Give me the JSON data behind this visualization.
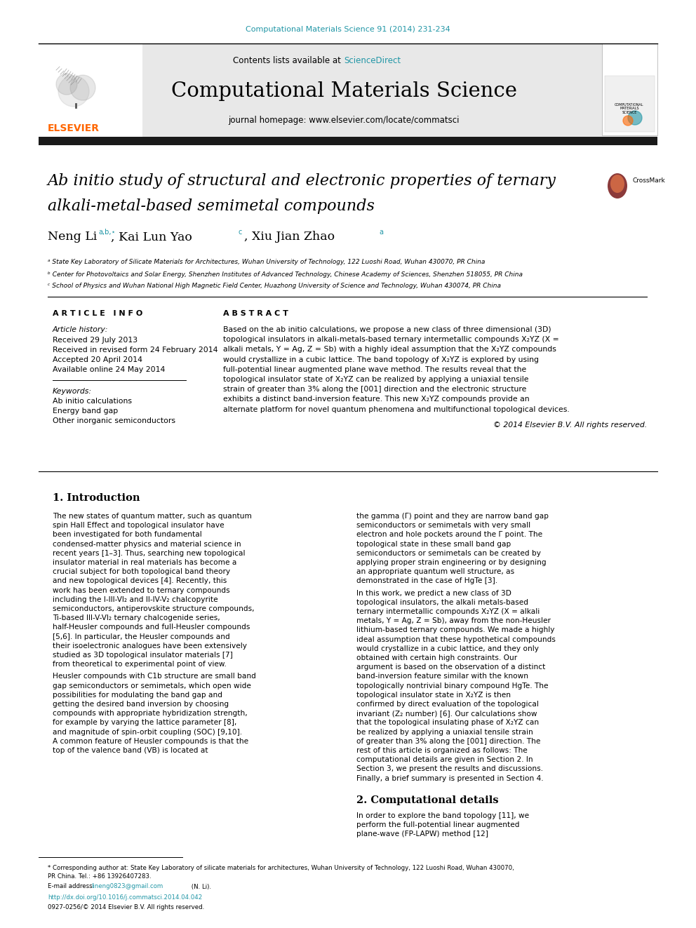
{
  "page_bg": "#ffffff",
  "journal_ref": "Computational Materials Science 91 (2014) 231-234",
  "journal_ref_color": "#2196A6",
  "header_bg": "#e8e8e8",
  "contents_text": "Contents lists available at ",
  "sciencedirect_text": "ScienceDirect",
  "sciencedirect_color": "#2196A6",
  "journal_title": "Computational Materials Science",
  "journal_homepage": "journal homepage: www.elsevier.com/locate/commatsci",
  "thick_bar_color": "#1a1a1a",
  "paper_title_line1": "Ab initio study of structural and electronic properties of ternary",
  "paper_title_line2": "alkali-metal-based semimetal compounds",
  "affil_a": "ᵃ State Key Laboratory of Silicate Materials for Architectures, Wuhan University of Technology, 122 Luoshi Road, Wuhan 430070, PR China",
  "affil_b": "ᵇ Center for Photovoltaics and Solar Energy, Shenzhen Institutes of Advanced Technology, Chinese Academy of Sciences, Shenzhen 518055, PR China",
  "affil_c": "ᶜ School of Physics and Wuhan National High Magnetic Field Center, Huazhong University of Science and Technology, Wuhan 430074, PR China",
  "article_info_header": "A R T I C L E   I N F O",
  "abstract_header": "A B S T R A C T",
  "article_history_label": "Article history:",
  "received": "Received 29 July 2013",
  "revised": "Received in revised form 24 February 2014",
  "accepted": "Accepted 20 April 2014",
  "available": "Available online 24 May 2014",
  "keywords_label": "Keywords:",
  "kw1": "Ab initio calculations",
  "kw2": "Energy band gap",
  "kw3": "Other inorganic semiconductors",
  "abstract_text": "Based on the ab initio calculations, we propose a new class of three dimensional (3D) topological insulators in alkali-metals-based ternary intermetallic compounds X₂YZ (X = alkali metals, Y = Ag, Z = Sb) with a highly ideal assumption that the X₂YZ compounds would crystallize in a cubic lattice. The band topology of X₂YZ is explored by using full-potential linear augmented plane wave method. The results reveal that the topological insulator state of X₂YZ can be realized by applying a uniaxial tensile strain of greater than 3% along the [001] direction and the electronic structure exhibits a distinct band-inversion feature. This new X₂YZ compounds provide an alternate platform for novel quantum phenomena and multifunctional topological devices.",
  "copyright": "© 2014 Elsevier B.V. All rights reserved.",
  "section1_title": "1. Introduction",
  "intro_col1": "    The new states of quantum matter, such as quantum spin Hall Effect and topological insulator have been investigated for both fundamental condensed-matter physics and material science in recent years [1–3]. Thus, searching new topological insulator material in real materials has become a crucial subject for both topological band theory and new topological devices [4]. Recently, this work has been extended to ternary compounds including the I-III-VI₂ and II-IV-V₂ chalcopyrite semiconductors, antiperovskite structure compounds, Ti-based III-V-VI₂ ternary chalcogenide series, half-Heusler compounds and full-Heusler compounds [5,6]. In particular, the Heusler compounds and their isoelectronic analogues have been extensively studied as 3D topological insulator materials [7] from theoretical to experimental point of view.",
  "intro_col1b": "    Heusler compounds with C1b structure are small band gap semiconductors or semimetals, which open wide possibilities for modulating the band gap and getting the desired band inversion by choosing compounds with appropriate hybridization strength, for example by varying the lattice parameter [8], and magnitude of spin-orbit coupling (SOC) [9,10]. A common feature of Heusler compounds is that the top of the valence band (VB) is located at",
  "intro_col2": "the gamma (Γ) point and they are narrow band gap semiconductors or semimetals with very small electron and hole pockets around the Γ point. The topological state in these small band gap semiconductors or semimetals can be created by applying proper strain engineering or by designing an appropriate quantum well structure, as demonstrated in the case of HgTe [3].",
  "intro_col2b": "    In this work, we predict a new class of 3D topological insulators, the alkali metals-based ternary intermetallic compounds X₂YZ (X = alkali metals, Y = Ag, Z = Sb), away from the non-Heusler lithium-based ternary compounds. We made a highly ideal assumption that these hypothetical compounds would crystallize in a cubic lattice, and they only obtained with certain high constraints. Our argument is based on the observation of a distinct band-inversion feature similar with the known topologically nontrivial binary compound HgTe. The topological insulator state in X₂YZ is then confirmed by direct evaluation of the topological invariant (Z₂ number) [6]. Our calculations show that the topological insulating phase of X₂YZ can be realized by applying a uniaxial tensile strain of greater than 3% along the [001] direction. The rest of this article is organized as follows: The computational details are given in Section 2. In Section 3, we present the results and discussions. Finally, a brief summary is presented in Section 4.",
  "section2_title": "2. Computational details",
  "section2_text": "    In order to explore the band topology [11], we perform the full-potential linear augmented plane-wave (FP-LAPW) method [12]",
  "footnote_star": "* Corresponding author at: State Key Laboratory of silicate materials for architectures, Wuhan University of Technology, 122 Luoshi Road, Wuhan 430070,",
  "footnote_star2": "PR China. Tel.: +86 13926407283.",
  "footnote_email_label": "E-mail address: ",
  "footnote_email": "lineng0823@gmail.com",
  "footnote_email_color": "#2196A6",
  "footnote_email_end": " (N. Li).",
  "doi_text": "http://dx.doi.org/10.1016/j.commatsci.2014.04.042",
  "doi_color": "#2196A6",
  "issn_text": "0927-0256/© 2014 Elsevier B.V. All rights reserved.",
  "elsevier_color": "#FF6600",
  "link_color": "#2196A6"
}
